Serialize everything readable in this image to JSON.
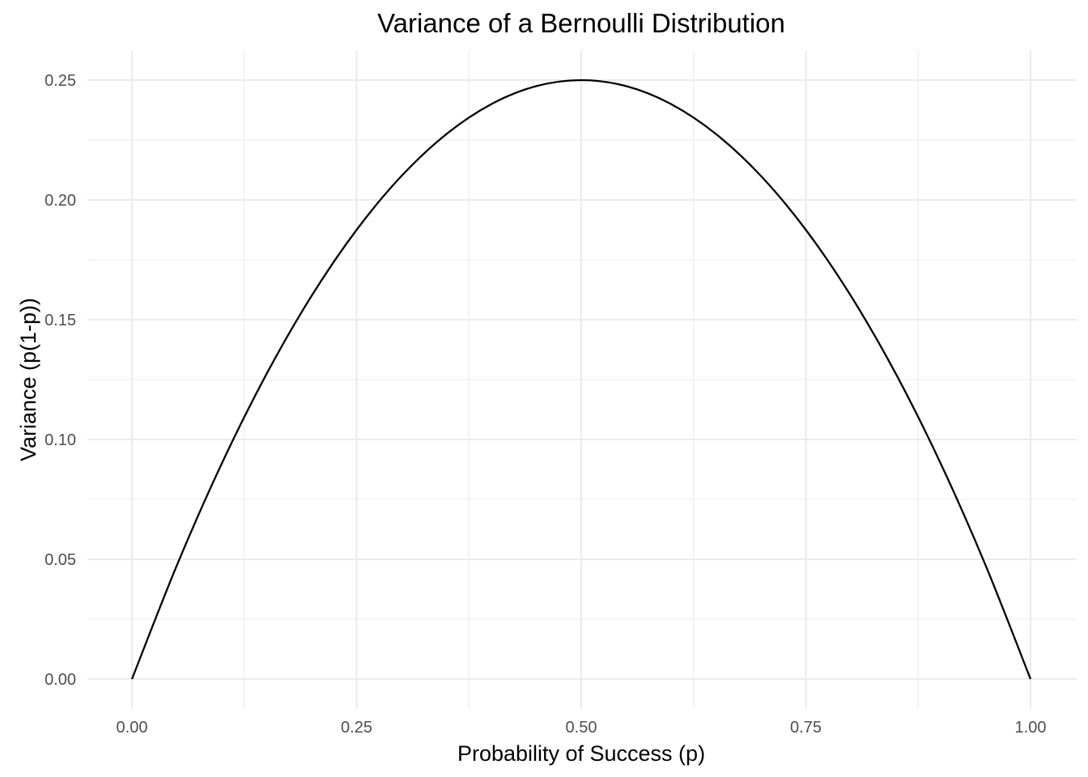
{
  "chart_data": {
    "type": "line",
    "title": "Variance of a Bernoulli Distribution",
    "xlabel": "Probability of Success (p)",
    "ylabel": "Variance (p(1-p))",
    "xlim": [
      0,
      1
    ],
    "ylim": [
      0,
      0.25
    ],
    "x_ticks": [
      "0.00",
      "0.25",
      "0.50",
      "0.75",
      "1.00"
    ],
    "y_ticks": [
      "0.00",
      "0.05",
      "0.10",
      "0.15",
      "0.20",
      "0.25"
    ],
    "grid": true,
    "legend": "none",
    "series": [
      {
        "color": "#000000",
        "x": [
          0,
          0.05,
          0.1,
          0.15,
          0.2,
          0.25,
          0.3,
          0.35,
          0.4,
          0.45,
          0.5,
          0.55,
          0.6,
          0.65,
          0.7,
          0.75,
          0.8,
          0.85,
          0.9,
          0.95,
          1
        ],
        "values": [
          0,
          0.0475,
          0.09,
          0.1275,
          0.16,
          0.1875,
          0.21,
          0.2275,
          0.24,
          0.2475,
          0.25,
          0.2475,
          0.24,
          0.2275,
          0.21,
          0.1875,
          0.16,
          0.1275,
          0.09,
          0.0475,
          0
        ]
      }
    ]
  }
}
